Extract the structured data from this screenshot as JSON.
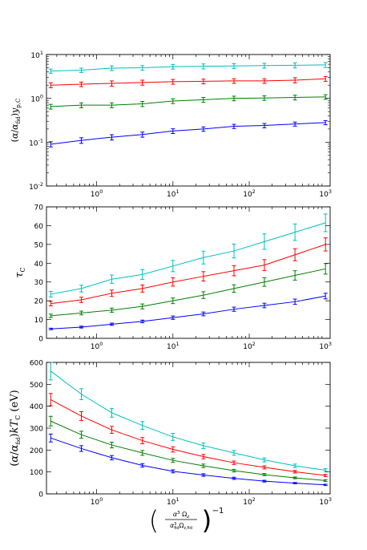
{
  "chart_data": [
    {
      "type": "line",
      "ylabel": "(α/α_fid) y_p,C",
      "yscale": "log",
      "ylim": [
        0.01,
        10
      ],
      "yticks": [
        {
          "base": "10",
          "exp": "1",
          "value": 10
        },
        {
          "base": "10",
          "exp": "0",
          "value": 1
        },
        {
          "base": "10",
          "exp": "-1",
          "value": 0.1
        },
        {
          "base": "10",
          "exp": "-2",
          "value": 0.01
        }
      ],
      "xscale": "log",
      "xlim": [
        0.22,
        1150
      ],
      "xticks": [
        {
          "base": "10",
          "exp": "0",
          "value": 1
        },
        {
          "base": "10",
          "exp": "1",
          "value": 10
        },
        {
          "base": "10",
          "exp": "2",
          "value": 100
        },
        {
          "base": "10",
          "exp": "3",
          "value": 1000
        }
      ],
      "x": [
        0.25,
        0.63,
        1.58,
        3.98,
        10,
        25.1,
        63.1,
        158,
        398,
        1000
      ],
      "series": [
        {
          "color": "#00bfbf",
          "values": [
            4.2,
            4.4,
            4.9,
            5.0,
            5.3,
            5.4,
            5.5,
            5.6,
            5.7,
            5.8
          ],
          "errors": [
            0.45,
            0.5,
            0.6,
            0.6,
            0.65,
            0.7,
            0.7,
            0.7,
            0.75,
            0.75
          ]
        },
        {
          "color": "#ff0000",
          "values": [
            2.0,
            2.1,
            2.2,
            2.3,
            2.4,
            2.45,
            2.5,
            2.5,
            2.6,
            2.8
          ],
          "errors": [
            0.25,
            0.25,
            0.3,
            0.3,
            0.3,
            0.3,
            0.3,
            0.3,
            0.35,
            0.35
          ]
        },
        {
          "color": "#008000",
          "values": [
            0.65,
            0.7,
            0.7,
            0.75,
            0.87,
            0.93,
            1.0,
            1.02,
            1.05,
            1.08
          ],
          "errors": [
            0.08,
            0.09,
            0.09,
            0.1,
            0.11,
            0.12,
            0.12,
            0.12,
            0.13,
            0.13
          ]
        },
        {
          "color": "#0000ff",
          "values": [
            0.09,
            0.11,
            0.13,
            0.15,
            0.18,
            0.2,
            0.23,
            0.24,
            0.26,
            0.28
          ],
          "errors": [
            0.012,
            0.016,
            0.018,
            0.02,
            0.022,
            0.023,
            0.025,
            0.027,
            0.028,
            0.03
          ]
        }
      ]
    },
    {
      "type": "line",
      "ylabel": "τ_C",
      "yscale": "linear",
      "ylim": [
        0,
        70
      ],
      "yticks": [
        0,
        10,
        20,
        30,
        40,
        50,
        60,
        70
      ],
      "xscale": "log",
      "xlim": [
        0.22,
        1150
      ],
      "xticks": [
        {
          "base": "10",
          "exp": "0",
          "value": 1
        },
        {
          "base": "10",
          "exp": "1",
          "value": 10
        },
        {
          "base": "10",
          "exp": "2",
          "value": 100
        },
        {
          "base": "10",
          "exp": "3",
          "value": 1000
        }
      ],
      "x": [
        0.25,
        0.63,
        1.58,
        3.98,
        10,
        25.1,
        63.1,
        158,
        398,
        1000
      ],
      "series": [
        {
          "color": "#00bfbf",
          "values": [
            23.5,
            26.5,
            31.5,
            34.0,
            38.5,
            43.0,
            46.5,
            51.5,
            56.5,
            61.5
          ],
          "errors": [
            1.5,
            1.8,
            2.2,
            2.6,
            3.0,
            3.4,
            3.7,
            4.1,
            4.4,
            4.7
          ]
        },
        {
          "color": "#ff0000",
          "values": [
            18.5,
            20.5,
            24.0,
            26.5,
            30.0,
            33.0,
            36.0,
            39.0,
            44.5,
            50.0
          ],
          "errors": [
            1.2,
            1.4,
            1.7,
            1.9,
            2.2,
            2.5,
            2.7,
            2.9,
            3.2,
            3.5
          ]
        },
        {
          "color": "#008000",
          "values": [
            12.0,
            13.5,
            15.0,
            17.0,
            20.0,
            23.0,
            26.5,
            30.0,
            33.5,
            37.0
          ],
          "errors": [
            0.9,
            1.0,
            1.1,
            1.3,
            1.5,
            1.8,
            2.0,
            2.3,
            2.5,
            2.8
          ]
        },
        {
          "color": "#0000ff",
          "values": [
            5.0,
            6.0,
            7.5,
            9.0,
            11.0,
            13.0,
            15.5,
            17.5,
            19.5,
            22.5
          ],
          "errors": [
            0.4,
            0.5,
            0.6,
            0.7,
            0.9,
            1.0,
            1.1,
            1.2,
            1.4,
            1.5
          ]
        }
      ]
    },
    {
      "type": "line",
      "ylabel": "(α/α_fid) kT_C (eV)",
      "yscale": "linear",
      "ylim": [
        0,
        600
      ],
      "yticks": [
        0,
        100,
        200,
        300,
        400,
        500,
        600
      ],
      "xscale": "log",
      "xlim": [
        0.22,
        1150
      ],
      "xticks": [
        {
          "base": "10",
          "exp": "0",
          "value": 1
        },
        {
          "base": "10",
          "exp": "1",
          "value": 10
        },
        {
          "base": "10",
          "exp": "2",
          "value": 100
        },
        {
          "base": "10",
          "exp": "3",
          "value": 1000
        }
      ],
      "x": [
        0.25,
        0.63,
        1.58,
        3.98,
        10,
        25.1,
        63.1,
        158,
        398,
        1000
      ],
      "series": [
        {
          "color": "#00bfbf",
          "values": [
            560,
            455,
            370,
            312,
            260,
            220,
            187,
            155,
            128,
            108
          ],
          "errors": [
            40,
            25,
            20,
            18,
            16,
            13,
            11,
            9,
            8,
            7
          ]
        },
        {
          "color": "#ff0000",
          "values": [
            430,
            355,
            292,
            243,
            203,
            170,
            142,
            121,
            101,
            84
          ],
          "errors": [
            28,
            20,
            16,
            14,
            12,
            10,
            8,
            7,
            6,
            5
          ]
        },
        {
          "color": "#008000",
          "values": [
            332,
            270,
            223,
            187,
            153,
            128,
            106,
            88,
            73,
            61
          ],
          "errors": [
            22,
            16,
            13,
            11,
            9,
            8,
            6,
            5,
            4,
            4
          ]
        },
        {
          "color": "#0000ff",
          "values": [
            255,
            207,
            165,
            130,
            103,
            86,
            71,
            58,
            49,
            41
          ],
          "errors": [
            18,
            13,
            10,
            8,
            7,
            6,
            5,
            4,
            3,
            3
          ]
        }
      ],
      "xlabel": "(α³ Ω_z / α³_fid Ω_z,fid)^-1"
    }
  ]
}
